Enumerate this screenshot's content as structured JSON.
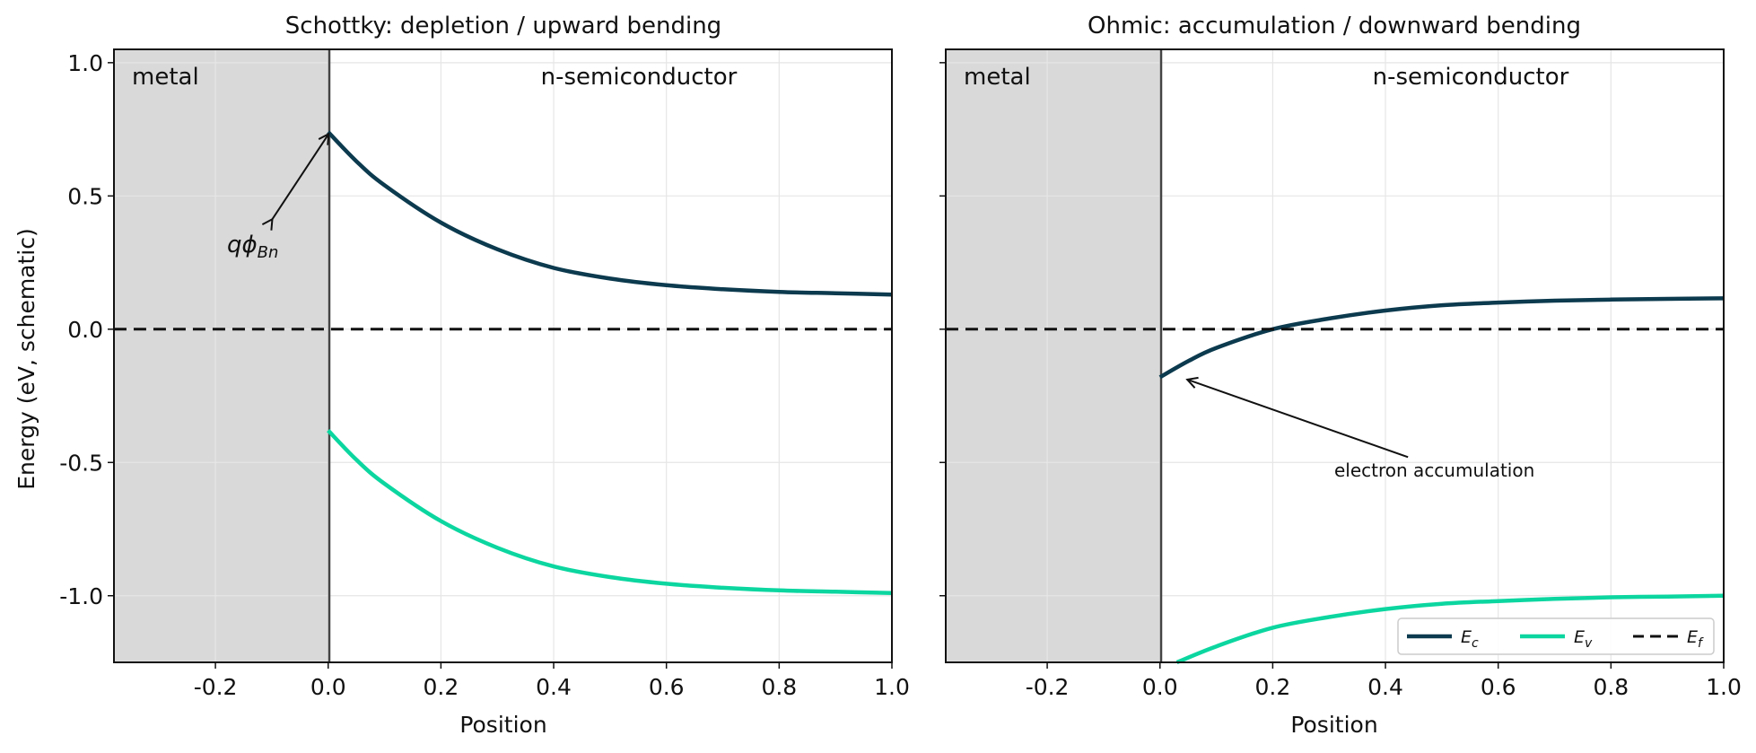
{
  "chart_data": [
    {
      "type": "line",
      "title": "Schottky: depletion / upward bending",
      "xlabel": "Position",
      "ylabel": "Energy (eV, schematic)",
      "xlim": [
        -0.38,
        1.0
      ],
      "ylim": [
        -1.25,
        1.05
      ],
      "xticks": [
        -0.2,
        0.0,
        0.2,
        0.4,
        0.6,
        0.8,
        1.0
      ],
      "xtick_labels": [
        "-0.2",
        "0.0",
        "0.2",
        "0.4",
        "0.6",
        "0.8",
        "1.0"
      ],
      "yticks": [
        1.0,
        0.5,
        0.0,
        -0.5,
        -1.0
      ],
      "ytick_labels": [
        "1.0",
        "0.5",
        "0.0",
        "-0.5",
        "-1.0"
      ],
      "grid": true,
      "regions": [
        {
          "label": "metal",
          "x": [
            -0.38,
            0.0
          ],
          "color": "#d9d9d9"
        },
        {
          "label": "n-semiconductor",
          "x": [
            0.0,
            1.0
          ],
          "color": "#ffffff"
        }
      ],
      "series": [
        {
          "name": "E_c",
          "color": "#0c3a4e",
          "x": [
            0.0,
            0.05,
            0.1,
            0.2,
            0.3,
            0.4,
            0.5,
            0.6,
            0.7,
            0.8,
            0.9,
            1.0
          ],
          "values": [
            0.74,
            0.63,
            0.54,
            0.4,
            0.3,
            0.23,
            0.19,
            0.165,
            0.15,
            0.14,
            0.135,
            0.13
          ]
        },
        {
          "name": "E_v",
          "color": "#0cd6a0",
          "x": [
            0.0,
            0.05,
            0.1,
            0.2,
            0.3,
            0.4,
            0.5,
            0.6,
            0.7,
            0.8,
            0.9,
            1.0
          ],
          "values": [
            -0.38,
            -0.49,
            -0.58,
            -0.72,
            -0.82,
            -0.89,
            -0.93,
            -0.955,
            -0.97,
            -0.98,
            -0.985,
            -0.99
          ]
        },
        {
          "name": "E_f",
          "color": "#111111",
          "dashed": true,
          "x": [
            -0.38,
            1.0
          ],
          "values": [
            0.0,
            0.0
          ]
        }
      ],
      "annotations": [
        {
          "text": "qφ_Bn",
          "display": "qϕ",
          "sub": "Bn",
          "x": -0.18,
          "y": 0.3,
          "arrow_to": [
            0.0,
            0.73
          ],
          "arrow_from": [
            -0.1,
            0.41
          ],
          "double_arrow": true
        }
      ]
    },
    {
      "type": "line",
      "title": "Ohmic: accumulation / downward bending",
      "xlabel": "Position",
      "ylabel": "",
      "xlim": [
        -0.38,
        1.0
      ],
      "ylim": [
        -1.25,
        1.05
      ],
      "xticks": [
        -0.2,
        0.0,
        0.2,
        0.4,
        0.6,
        0.8,
        1.0
      ],
      "xtick_labels": [
        "-0.2",
        "0.0",
        "0.2",
        "0.4",
        "0.6",
        "0.8",
        "1.0"
      ],
      "yticks": [
        1.0,
        0.5,
        0.0,
        -0.5,
        -1.0
      ],
      "ytick_labels": [],
      "grid": true,
      "regions": [
        {
          "label": "metal",
          "x": [
            -0.38,
            0.0
          ],
          "color": "#d9d9d9"
        },
        {
          "label": "n-semiconductor",
          "x": [
            0.0,
            1.0
          ],
          "color": "#ffffff"
        }
      ],
      "series": [
        {
          "name": "E_c",
          "color": "#0c3a4e",
          "x": [
            0.0,
            0.05,
            0.1,
            0.2,
            0.3,
            0.4,
            0.5,
            0.6,
            0.7,
            0.8,
            0.9,
            1.0
          ],
          "values": [
            -0.18,
            -0.12,
            -0.07,
            0.0,
            0.04,
            0.07,
            0.09,
            0.1,
            0.107,
            0.111,
            0.114,
            0.116
          ]
        },
        {
          "name": "E_v",
          "color": "#0cd6a0",
          "x": [
            0.03,
            0.1,
            0.2,
            0.3,
            0.4,
            0.5,
            0.6,
            0.7,
            0.8,
            0.9,
            1.0
          ],
          "values": [
            -1.25,
            -1.19,
            -1.12,
            -1.08,
            -1.05,
            -1.03,
            -1.02,
            -1.012,
            -1.006,
            -1.003,
            -1.0
          ]
        },
        {
          "name": "E_f",
          "color": "#111111",
          "dashed": true,
          "x": [
            -0.38,
            1.0
          ],
          "values": [
            0.0,
            0.0
          ]
        }
      ],
      "annotations": [
        {
          "text": "electron accumulation",
          "x": 0.31,
          "y": -0.53,
          "arrow_from": [
            0.44,
            -0.48
          ],
          "arrow_to": [
            0.05,
            -0.19
          ]
        }
      ],
      "legend": {
        "placement": "lower-right",
        "entries": [
          "E_c",
          "E_v",
          "E_f"
        ],
        "display": [
          [
            "E",
            "c"
          ],
          [
            "E",
            "v"
          ],
          [
            "E",
            "f"
          ]
        ]
      }
    }
  ]
}
